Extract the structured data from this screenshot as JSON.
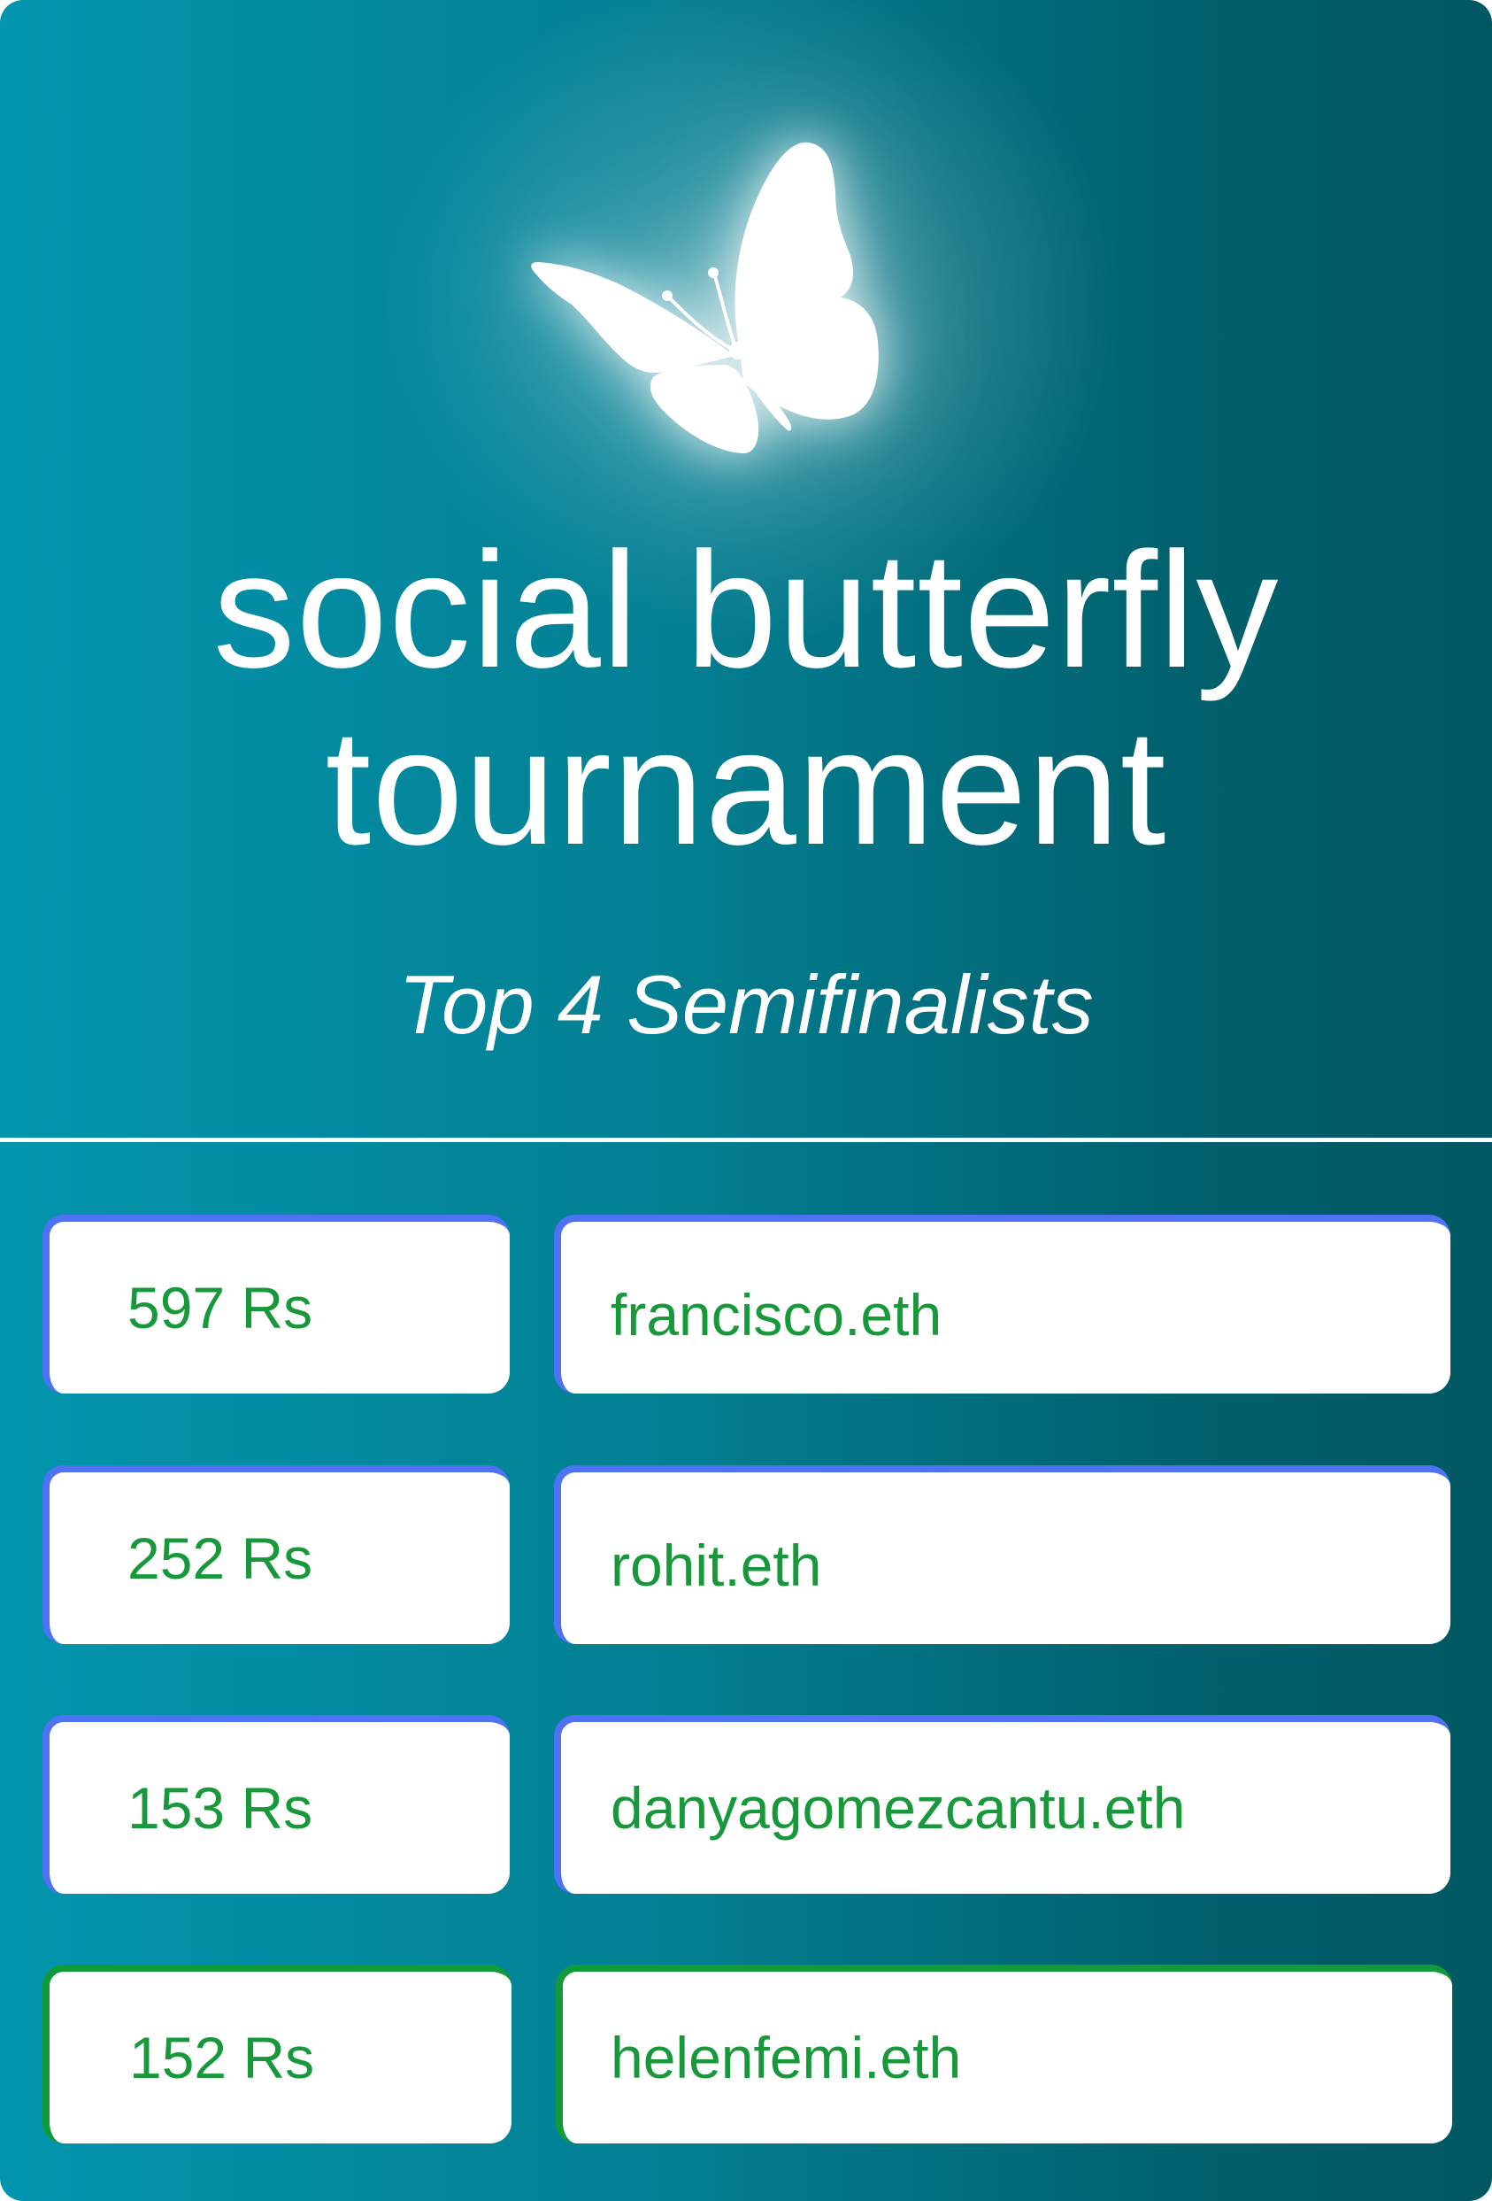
{
  "title": {
    "line1": "social butterfly",
    "line2": "tournament"
  },
  "subtitle": "Top 4 Semifinalists",
  "colors": {
    "background_left": "#0395ae",
    "background_right": "#015863",
    "text_green": "#17983a",
    "border_blue": "#4f72f5",
    "border_green": "#119a3a"
  },
  "icon": "butterfly-icon",
  "semifinalists": [
    {
      "score": "597 Rs",
      "name": "francisco.eth",
      "accent": "blue"
    },
    {
      "score": "252 Rs",
      "name": "rohit.eth",
      "accent": "blue"
    },
    {
      "score": "153 Rs",
      "name": "danyagomezcantu.eth",
      "accent": "blue"
    },
    {
      "score": "152 Rs",
      "name": "helenfemi.eth",
      "accent": "green"
    }
  ]
}
